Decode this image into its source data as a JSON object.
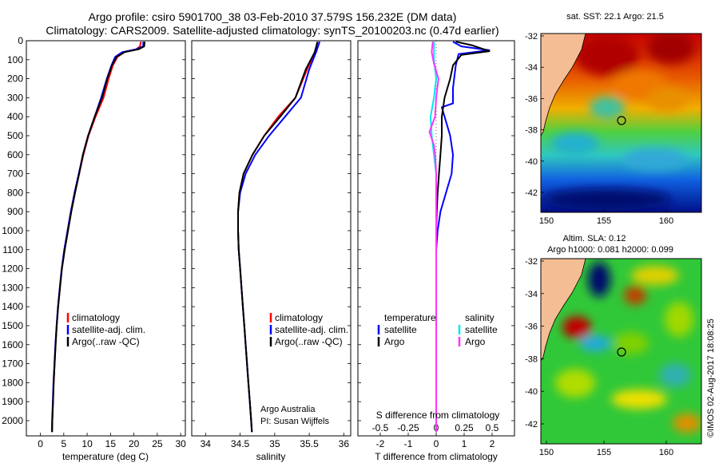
{
  "header": {
    "title_line1": "Argo profile: csiro 5901700_38 03-Feb-2010 37.579S 156.232E (DM data)",
    "title_line2": "Climatology: CARS2009. Satellite-adjusted climatology: synTS_20100203.nc (0.47d earlier)"
  },
  "colors": {
    "climatology": "#ff0000",
    "satellite": "#0000ff",
    "argo": "#000000",
    "sal_satellite": "#00e5ee",
    "sal_argo": "#ff33ff",
    "land": "#f5bd94"
  },
  "chart_data": [
    {
      "type": "line",
      "id": "temperature",
      "xlabel": "temperature (deg C)",
      "xlim": [
        -3,
        31
      ],
      "xticks": [
        "0",
        "5",
        "10",
        "15",
        "20",
        "25",
        "30"
      ],
      "ylim": [
        0,
        2080
      ],
      "yticks": [
        "0",
        "100",
        "200",
        "300",
        "400",
        "500",
        "600",
        "700",
        "800",
        "900",
        "1000",
        "1100",
        "1200",
        "1300",
        "1400",
        "1500",
        "1600",
        "1700",
        "1800",
        "1900",
        "2000"
      ],
      "legend": [
        "climatology",
        "satellite-adj. clim.",
        "Argo(..raw -QC)"
      ],
      "series": [
        {
          "name": "climatology",
          "color": "#ff0000",
          "points": [
            [
              21.5,
              5
            ],
            [
              21.3,
              30
            ],
            [
              20.5,
              45
            ],
            [
              18,
              60
            ],
            [
              16.5,
              85
            ],
            [
              15.5,
              130
            ],
            [
              14.6,
              200
            ],
            [
              13.5,
              300
            ],
            [
              11.8,
              400
            ],
            [
              10.3,
              500
            ],
            [
              9.2,
              600
            ],
            [
              8.3,
              700
            ],
            [
              7.4,
              800
            ],
            [
              6.6,
              900
            ],
            [
              5.9,
              1000
            ],
            [
              5.2,
              1100
            ],
            [
              4.6,
              1200
            ],
            [
              4.2,
              1300
            ],
            [
              3.8,
              1400
            ],
            [
              3.5,
              1500
            ],
            [
              3.25,
              1600
            ],
            [
              3.05,
              1700
            ],
            [
              2.85,
              1800
            ],
            [
              2.7,
              1900
            ],
            [
              2.55,
              2000
            ],
            [
              2.5,
              2060
            ]
          ]
        },
        {
          "name": "satellite-adj. clim.",
          "color": "#0000ff",
          "points": [
            [
              22.0,
              5
            ],
            [
              22.0,
              30
            ],
            [
              20.5,
              45
            ],
            [
              17.5,
              60
            ],
            [
              16,
              85
            ],
            [
              15.2,
              130
            ],
            [
              14.2,
              200
            ],
            [
              13,
              300
            ],
            [
              11.6,
              400
            ],
            [
              10.2,
              500
            ],
            [
              9.1,
              600
            ],
            [
              8.2,
              700
            ],
            [
              7.3,
              800
            ],
            [
              6.5,
              900
            ],
            [
              5.8,
              1000
            ],
            [
              5.1,
              1100
            ],
            [
              4.55,
              1200
            ],
            [
              4.15,
              1300
            ],
            [
              3.75,
              1400
            ],
            [
              3.45,
              1500
            ],
            [
              3.2,
              1600
            ],
            [
              3.0,
              1700
            ],
            [
              2.8,
              1800
            ],
            [
              2.65,
              1900
            ],
            [
              2.5,
              2000
            ],
            [
              2.45,
              2060
            ]
          ]
        },
        {
          "name": "Argo(..raw -QC)",
          "color": "#000000",
          "points": [
            [
              22.3,
              5
            ],
            [
              22.2,
              30
            ],
            [
              21,
              45
            ],
            [
              18,
              60
            ],
            [
              16.3,
              85
            ],
            [
              15.3,
              130
            ],
            [
              14.3,
              200
            ],
            [
              13.2,
              300
            ],
            [
              11.6,
              400
            ],
            [
              10.2,
              500
            ],
            [
              9.1,
              600
            ],
            [
              8.3,
              700
            ],
            [
              7.4,
              800
            ],
            [
              6.6,
              900
            ],
            [
              5.9,
              1000
            ],
            [
              5.2,
              1100
            ],
            [
              4.6,
              1200
            ],
            [
              4.2,
              1300
            ],
            [
              3.8,
              1400
            ],
            [
              3.5,
              1500
            ],
            [
              3.25,
              1600
            ],
            [
              3.05,
              1700
            ],
            [
              2.85,
              1800
            ],
            [
              2.7,
              1900
            ],
            [
              2.55,
              2000
            ],
            [
              2.5,
              2060
            ]
          ]
        }
      ]
    },
    {
      "type": "line",
      "id": "salinity",
      "xlabel": "salinity",
      "xlim": [
        33.8,
        36.1
      ],
      "xticks": [
        "34",
        "34.5",
        "35",
        "35.5",
        "36"
      ],
      "ylim": [
        0,
        2080
      ],
      "legend": [
        "climatology",
        "satellite-adj. clim.",
        "Argo(..raw -QC)"
      ],
      "annotation": [
        "Argo Australia",
        "PI: Susan Wijffels"
      ],
      "series": [
        {
          "name": "climatology",
          "color": "#ff0000",
          "points": [
            [
              35.62,
              5
            ],
            [
              35.58,
              60
            ],
            [
              35.47,
              150
            ],
            [
              35.3,
              300
            ],
            [
              35.05,
              400
            ],
            [
              34.85,
              500
            ],
            [
              34.68,
              600
            ],
            [
              34.55,
              700
            ],
            [
              34.49,
              800
            ],
            [
              34.47,
              900
            ],
            [
              34.47,
              1000
            ],
            [
              34.48,
              1100
            ],
            [
              34.5,
              1200
            ],
            [
              34.52,
              1300
            ],
            [
              34.54,
              1400
            ],
            [
              34.56,
              1500
            ],
            [
              34.58,
              1600
            ],
            [
              34.6,
              1700
            ],
            [
              34.62,
              1800
            ],
            [
              34.64,
              1900
            ],
            [
              34.66,
              2000
            ],
            [
              34.67,
              2060
            ]
          ]
        },
        {
          "name": "satellite-adj. clim.",
          "color": "#0000ff",
          "points": [
            [
              35.65,
              5
            ],
            [
              35.6,
              60
            ],
            [
              35.5,
              150
            ],
            [
              35.38,
              300
            ],
            [
              35.15,
              400
            ],
            [
              34.92,
              500
            ],
            [
              34.72,
              600
            ],
            [
              34.58,
              700
            ],
            [
              34.5,
              800
            ],
            [
              34.47,
              900
            ],
            [
              34.47,
              1000
            ],
            [
              34.48,
              1100
            ],
            [
              34.5,
              1200
            ],
            [
              34.52,
              1300
            ],
            [
              34.54,
              1400
            ],
            [
              34.56,
              1500
            ],
            [
              34.58,
              1600
            ],
            [
              34.6,
              1700
            ],
            [
              34.62,
              1800
            ],
            [
              34.64,
              1900
            ],
            [
              34.66,
              2000
            ],
            [
              34.67,
              2060
            ]
          ]
        },
        {
          "name": "Argo(..raw -QC)",
          "color": "#000000",
          "points": [
            [
              35.62,
              5
            ],
            [
              35.58,
              60
            ],
            [
              35.45,
              150
            ],
            [
              35.3,
              300
            ],
            [
              35.08,
              400
            ],
            [
              34.85,
              500
            ],
            [
              34.68,
              600
            ],
            [
              34.55,
              700
            ],
            [
              34.49,
              800
            ],
            [
              34.47,
              900
            ],
            [
              34.47,
              1000
            ],
            [
              34.48,
              1100
            ],
            [
              34.5,
              1200
            ],
            [
              34.52,
              1300
            ],
            [
              34.54,
              1400
            ],
            [
              34.56,
              1500
            ],
            [
              34.58,
              1600
            ],
            [
              34.6,
              1700
            ],
            [
              34.62,
              1800
            ],
            [
              34.64,
              1900
            ],
            [
              34.66,
              2000
            ],
            [
              34.67,
              2060
            ]
          ]
        }
      ]
    },
    {
      "type": "line",
      "id": "difference",
      "xlabel": "T difference from climatology",
      "toplabel": "S difference from climatology",
      "xlim": [
        -2.8,
        2.8
      ],
      "xticks": [
        "-2",
        "-1",
        "0",
        "1",
        "2"
      ],
      "sticks": [
        "-0.5",
        "-0.25",
        "0",
        "0.25",
        "0.5"
      ],
      "ylim": [
        0,
        2080
      ],
      "legend_temperature": {
        "title": "temperature",
        "items": [
          "satellite",
          "Argo"
        ]
      },
      "legend_salinity": {
        "title": "salinity",
        "items": [
          "satellite",
          "Argo"
        ]
      },
      "series": [
        {
          "name": "T satellite",
          "color": "#0000ff",
          "points": [
            [
              0.6,
              5
            ],
            [
              0.9,
              30
            ],
            [
              1.9,
              50
            ],
            [
              0.8,
              70
            ],
            [
              0.7,
              130
            ],
            [
              0.6,
              250
            ],
            [
              0.6,
              330
            ],
            [
              0.2,
              350
            ],
            [
              0.3,
              400
            ],
            [
              0.5,
              500
            ],
            [
              0.6,
              600
            ],
            [
              0.55,
              700
            ],
            [
              0.35,
              800
            ],
            [
              0.15,
              900
            ],
            [
              0.05,
              1000
            ],
            [
              0,
              1100
            ],
            [
              0,
              1200
            ],
            [
              0,
              1300
            ],
            [
              0,
              1400
            ],
            [
              0,
              1500
            ],
            [
              0,
              2060
            ]
          ]
        },
        {
          "name": "T Argo",
          "color": "#000000",
          "points": [
            [
              0.7,
              5
            ],
            [
              1.3,
              25
            ],
            [
              1.9,
              55
            ],
            [
              0.9,
              75
            ],
            [
              0.6,
              130
            ],
            [
              0.5,
              200
            ],
            [
              0.3,
              300
            ],
            [
              0.2,
              400
            ],
            [
              0.2,
              500
            ],
            [
              0.15,
              600
            ],
            [
              0.1,
              700
            ],
            [
              0.05,
              800
            ],
            [
              0.02,
              900
            ],
            [
              0,
              1000
            ],
            [
              0,
              1100
            ],
            [
              0,
              1200
            ],
            [
              0,
              1300
            ],
            [
              0,
              1400
            ],
            [
              0,
              1500
            ],
            [
              0,
              2060
            ]
          ]
        },
        {
          "name": "S satellite",
          "color": "#00e5ee",
          "points": [
            [
              -0.02,
              5
            ],
            [
              -0.02,
              100
            ],
            [
              0,
              200
            ],
            [
              -0.02,
              300
            ],
            [
              -0.05,
              400
            ],
            [
              -0.04,
              500
            ],
            [
              -0.02,
              600
            ],
            [
              0,
              700
            ],
            [
              0,
              800
            ],
            [
              0,
              2060
            ]
          ]
        },
        {
          "name": "S Argo",
          "color": "#ff33ff",
          "points": [
            [
              -0.03,
              5
            ],
            [
              -0.04,
              60
            ],
            [
              -0.02,
              120
            ],
            [
              0.02,
              200
            ],
            [
              0.0,
              300
            ],
            [
              -0.01,
              400
            ],
            [
              -0.06,
              480
            ],
            [
              -0.02,
              550
            ],
            [
              -0.01,
              600
            ],
            [
              0,
              700
            ],
            [
              0,
              800
            ],
            [
              0,
              2060
            ]
          ]
        }
      ]
    }
  ],
  "maps": {
    "sst": {
      "title": "sat. SST: 22.1  Argo: 21.5",
      "yticks": [
        "-32",
        "-34",
        "-36",
        "-38",
        "-40",
        "-42"
      ],
      "xticks": [
        "150",
        "155",
        "160"
      ]
    },
    "sla": {
      "title_line1": "Altim. SLA: 0.12",
      "title_line2": "Argo h1000: 0.081 h2000: 0.099",
      "yticks": [
        "-32",
        "-34",
        "-36",
        "-38",
        "-40",
        "-42"
      ],
      "xticks": [
        "150",
        "155",
        "160"
      ]
    }
  },
  "footer": {
    "stamp": "©IMOS 02-Aug-2017 18:08:25"
  }
}
